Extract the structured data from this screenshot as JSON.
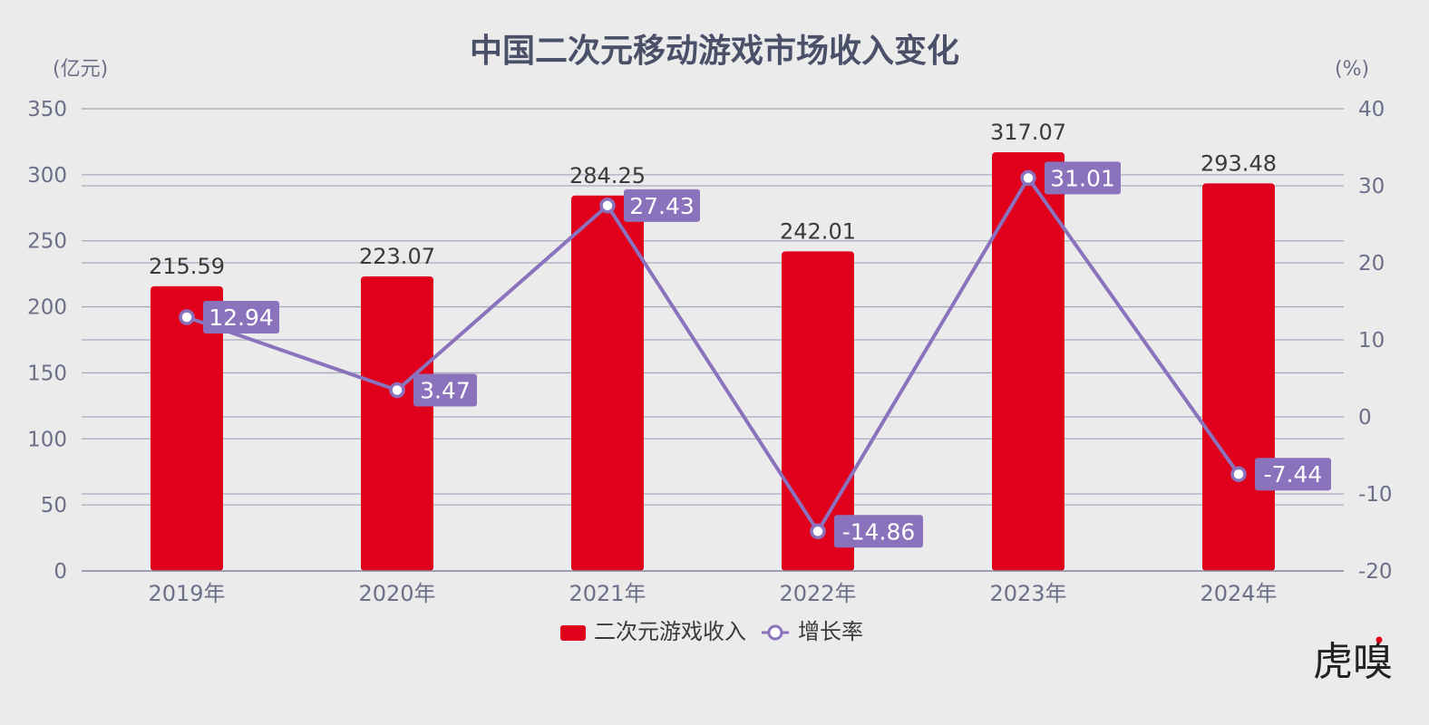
{
  "chart_data": {
    "type": "bar",
    "title": "中国二次元移动游戏市场收入变化",
    "left_unit": "(亿元)",
    "right_unit": "(%)",
    "categories": [
      "2019年",
      "2020年",
      "2021年",
      "2022年",
      "2023年",
      "2024年"
    ],
    "series": [
      {
        "name": "二次元游戏收入",
        "type": "bar",
        "axis": "left",
        "values": [
          215.59,
          223.07,
          284.25,
          242.01,
          317.07,
          293.48
        ]
      },
      {
        "name": "增长率",
        "type": "line",
        "axis": "right",
        "values": [
          12.94,
          3.47,
          27.43,
          -14.86,
          31.01,
          -7.44
        ]
      }
    ],
    "left_ylim": [
      0,
      350
    ],
    "left_ticks": [
      "0",
      "50",
      "100",
      "150",
      "200",
      "250",
      "300",
      "350"
    ],
    "right_ylim": [
      -20,
      40
    ],
    "right_ticks": [
      "-20",
      "-10",
      "0",
      "10",
      "20",
      "30",
      "40"
    ],
    "grid": true,
    "legend_position": "bottom",
    "colors": {
      "bar": "#e0001b",
      "line": "#8b72bd",
      "grid": "#a9abbd",
      "title": "#4a5068"
    }
  },
  "watermark": "虎嗅"
}
